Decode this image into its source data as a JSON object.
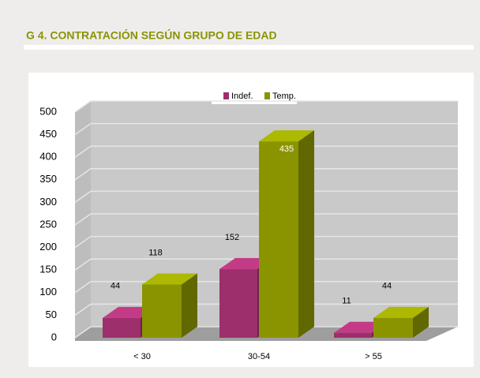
{
  "chart_data": {
    "type": "bar3d",
    "title": "G 4. CONTRATACIÓN  SEGÚN GRUPO DE EDAD",
    "categories": [
      "< 30",
      "30-54",
      "> 55"
    ],
    "series": [
      {
        "name": "Indef.",
        "color": "#9c2f6c",
        "values": [
          44,
          152,
          11
        ]
      },
      {
        "name": "Temp.",
        "color": "#8a9400",
        "values": [
          118,
          435,
          44
        ]
      }
    ],
    "ylim": [
      0,
      500
    ],
    "yticks": [
      0,
      50,
      100,
      150,
      200,
      250,
      300,
      350,
      400,
      450,
      500
    ],
    "grid": true,
    "legend": "top"
  }
}
